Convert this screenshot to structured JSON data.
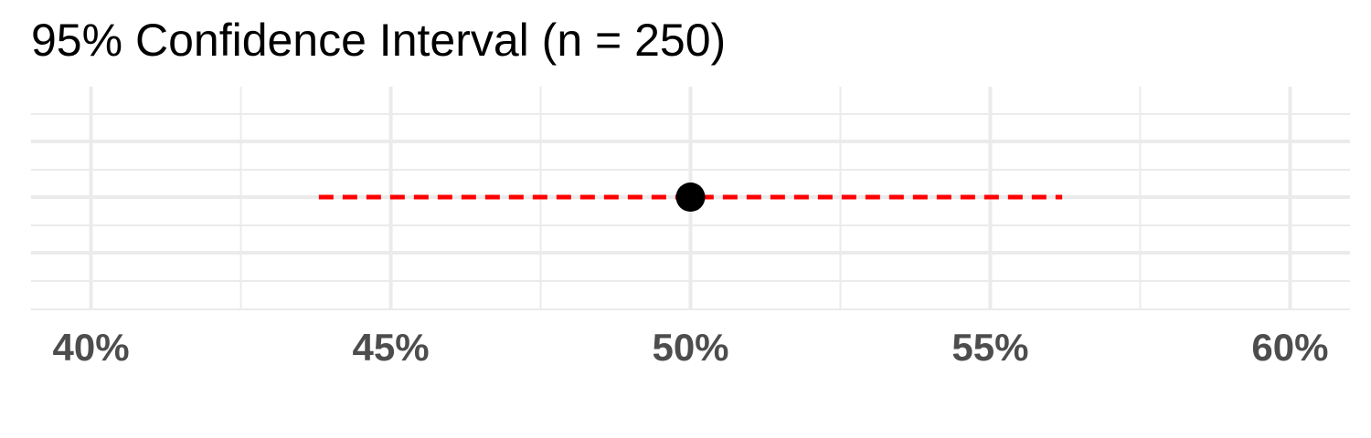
{
  "chart_data": {
    "type": "interval",
    "title": "95% Confidence Interval (n = 250)",
    "xlabel": "",
    "ylabel": "",
    "xlim": [
      39.0,
      61.0
    ],
    "x_ticks": [
      40,
      45,
      50,
      55,
      60
    ],
    "x_tick_labels": [
      "40%",
      "45%",
      "50%",
      "55%",
      "60%"
    ],
    "estimate": 50.0,
    "lower": 43.8,
    "upper": 56.2,
    "grid": true,
    "legend": "none",
    "colors": {
      "point": "#000000",
      "interval": "#ff0000",
      "grid": "#ebebeb",
      "tick_label": "#4d4d4d"
    }
  }
}
